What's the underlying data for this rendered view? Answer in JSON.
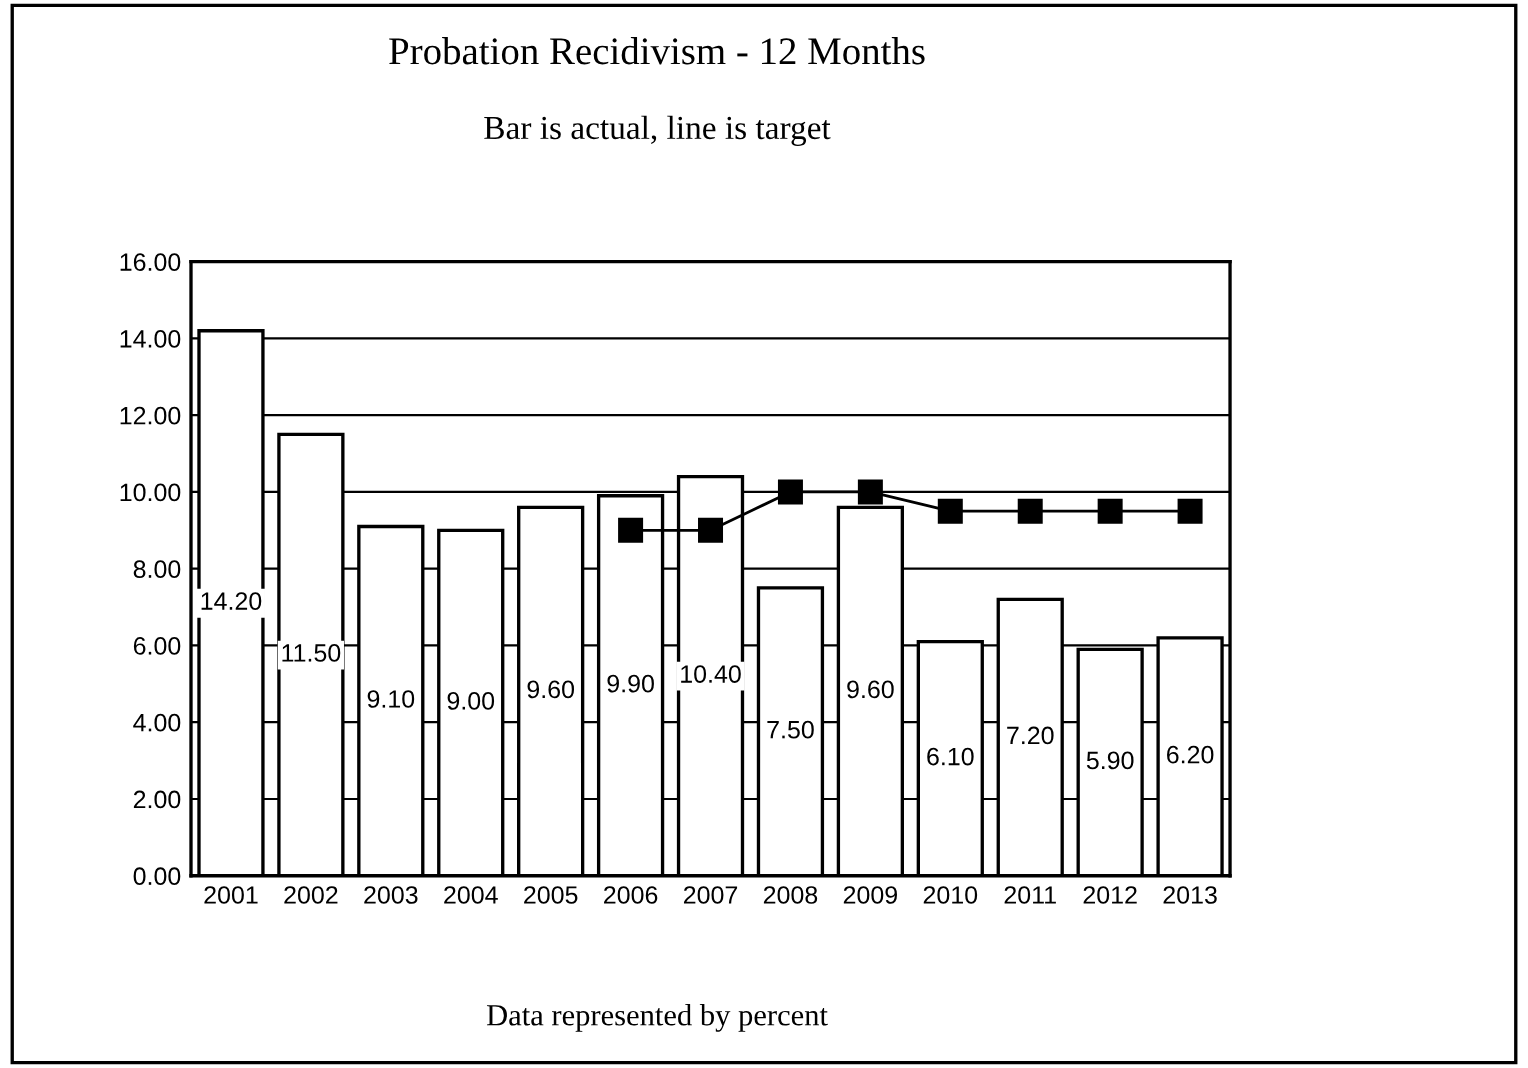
{
  "chart_data": {
    "type": "bar",
    "title": "Probation Recidivism - 12 Months",
    "subtitle": "Bar is actual, line is target",
    "annotations": [
      "Data represented by percent"
    ],
    "categories": [
      "2001",
      "2002",
      "2003",
      "2004",
      "2005",
      "2006",
      "2007",
      "2008",
      "2009",
      "2010",
      "2011",
      "2012",
      "2013"
    ],
    "series": [
      {
        "color": "#ffffff",
        "values": [
          14.2,
          11.5,
          9.1,
          9.0,
          9.6,
          9.9,
          10.4,
          7.5,
          9.6,
          6.1,
          7.2,
          5.9,
          6.2
        ],
        "value_labels": [
          "14.20",
          "11.50",
          "9.10",
          "9.00",
          "9.60",
          "9.90",
          "10.40",
          "7.50",
          "9.60",
          "6.10",
          "7.20",
          "5.90",
          "6.20"
        ]
      },
      {
        "type": "line",
        "color": "#000000",
        "marker": "square",
        "values": [
          null,
          null,
          null,
          null,
          null,
          9.0,
          9.0,
          10.0,
          10.0,
          9.5,
          9.5,
          9.5,
          9.5
        ]
      }
    ],
    "ylim": [
      0,
      16
    ],
    "yticks": [
      {
        "value": 0,
        "label": "0.00"
      },
      {
        "value": 2,
        "label": "2.00"
      },
      {
        "value": 4,
        "label": "4.00"
      },
      {
        "value": 6,
        "label": "6.00"
      },
      {
        "value": 8,
        "label": "8.00"
      },
      {
        "value": 10,
        "label": "10.00"
      },
      {
        "value": 12,
        "label": "12.00"
      },
      {
        "value": 14,
        "label": "14.00"
      },
      {
        "value": 16,
        "label": "16.00"
      }
    ],
    "grid": "y"
  }
}
